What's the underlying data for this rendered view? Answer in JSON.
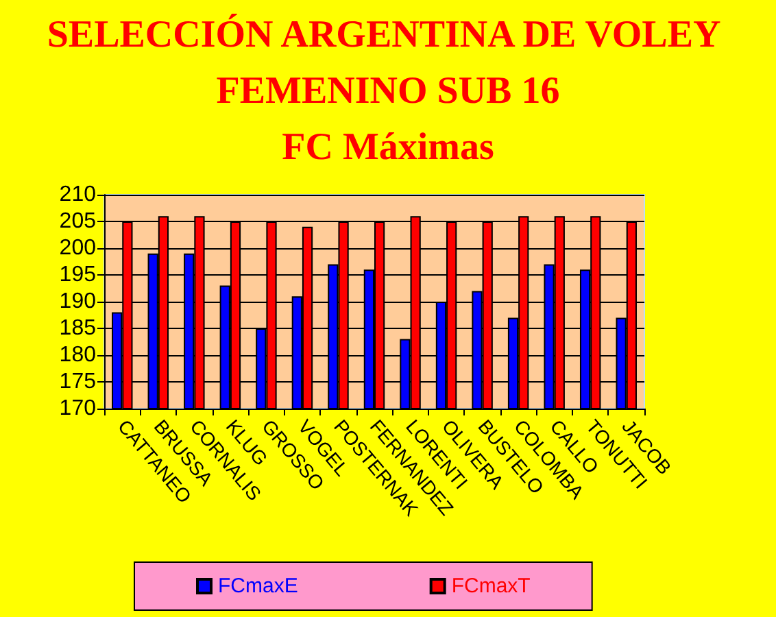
{
  "chart_data": {
    "type": "bar",
    "title": "SELECCIÓN ARGENTINA DE VOLEY FEMENINO SUB 16",
    "subtitle": "FC Máximas",
    "categories": [
      "CATTANEO",
      "BRUSSA",
      "CORNALIS",
      "KLUG",
      "GROSSO",
      "VOGEL",
      "POSTERNAK",
      "FERNANDEZ",
      "LORENTI",
      "OLIVERA",
      "BUSTELO",
      "COLOMBA",
      "CALLO",
      "TONUTTI",
      "JACOB"
    ],
    "series": [
      {
        "name": "FCmaxE",
        "color": "#0000ff",
        "values": [
          188,
          199,
          199,
          193,
          185,
          191,
          197,
          196,
          183,
          190,
          192,
          187,
          197,
          196,
          187
        ]
      },
      {
        "name": "FCmaxT",
        "color": "#ff0000",
        "values": [
          205,
          206,
          206,
          205,
          205,
          204,
          205,
          205,
          206,
          205,
          205,
          206,
          206,
          206,
          205
        ]
      }
    ],
    "ylim": [
      170,
      210
    ],
    "yticks": [
      170,
      175,
      180,
      185,
      190,
      195,
      200,
      205,
      210
    ],
    "grid": "y",
    "legend": "bottom"
  }
}
